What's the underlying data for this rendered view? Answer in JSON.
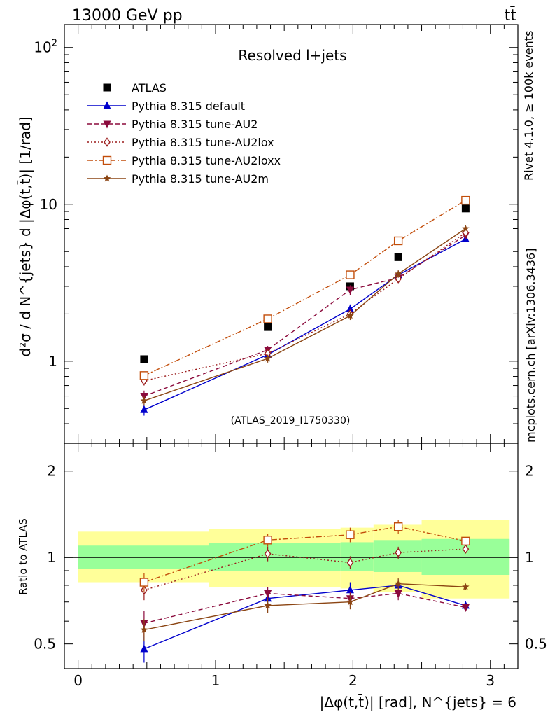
{
  "header": {
    "energy_label": "13000 GeV pp",
    "process_label": "tt̄"
  },
  "side_labels": {
    "rivet": "Rivet 4.1.0, ≥ 100k events",
    "mcplots": "mcplots.cern.ch [arXiv:1306.3436]"
  },
  "colors": {
    "atlas": "#000000",
    "default": "#0000cc",
    "au2": "#8b0a3c",
    "au2lox": "#9b1c1c",
    "au2loxx": "#c24d0a",
    "au2m": "#8b4513",
    "band_inner": "#99ff99",
    "band_outer": "#ffff99"
  },
  "chart_data": [
    {
      "type": "line",
      "panel": "main",
      "title": "Resolved l+jets",
      "watermark": "(ATLAS_2019_I1750330)",
      "ylabel": "d²σ / d N^{jets} d |Δφ(t,t̄)| [1/rad]",
      "yscale": "log",
      "ylim": [
        0.3,
        140
      ],
      "xlim": [
        -0.1,
        3.2
      ],
      "y_ticks": [
        {
          "value": 1,
          "label": "1"
        },
        {
          "value": 10,
          "label": "10"
        },
        {
          "value": 100,
          "label": "10²"
        }
      ],
      "legend_position": "top-left",
      "x": [
        0.48,
        1.38,
        1.98,
        2.33,
        2.82
      ],
      "series": [
        {
          "name": "ATLAS",
          "key": "atlas",
          "marker": "square-filled",
          "line": "none",
          "values": [
            1.03,
            1.65,
            3.0,
            4.6,
            9.4
          ],
          "errors": [
            0,
            0,
            0,
            0,
            0
          ]
        },
        {
          "name": "Pythia 8.315 default",
          "key": "default",
          "marker": "triangle-up-filled",
          "line": "solid",
          "values": [
            0.49,
            1.1,
            2.15,
            3.55,
            6.0
          ],
          "errors": [
            0.04,
            0.06,
            0.15,
            0.2,
            0.2
          ]
        },
        {
          "name": "Pythia 8.315 tune-AU2",
          "key": "au2",
          "marker": "triangle-down-filled",
          "line": "dashed",
          "values": [
            0.6,
            1.18,
            2.85,
            3.4,
            6.35
          ],
          "errors": [
            0.05,
            0.07,
            0.2,
            0.2,
            0.2
          ]
        },
        {
          "name": "Pythia 8.315 tune-AU2lox",
          "key": "au2lox",
          "marker": "diamond-open",
          "line": "dotted",
          "values": [
            0.75,
            1.12,
            2.0,
            3.35,
            6.6
          ],
          "errors": [
            0.05,
            0.06,
            0.12,
            0.2,
            0.2
          ]
        },
        {
          "name": "Pythia 8.315 tune-AU2loxx",
          "key": "au2loxx",
          "marker": "square-open",
          "line": "dashdot",
          "values": [
            0.81,
            1.86,
            3.55,
            5.85,
            10.6
          ],
          "errors": [
            0.05,
            0.08,
            0.2,
            0.25,
            0.3
          ]
        },
        {
          "name": "Pythia 8.315 tune-AU2m",
          "key": "au2m",
          "marker": "star",
          "line": "solid",
          "values": [
            0.56,
            1.04,
            1.95,
            3.6,
            7.0
          ],
          "errors": [
            0.04,
            0.06,
            0.12,
            0.2,
            0.2
          ]
        }
      ]
    },
    {
      "type": "line",
      "panel": "ratio",
      "ylabel": "Ratio to ATLAS",
      "xlabel": "|Δφ(t,t̄)| [rad], N^{jets} = 6",
      "yscale": "log",
      "ylim": [
        0.41,
        2.5
      ],
      "xlim": [
        -0.1,
        3.2
      ],
      "y_ticks": [
        {
          "value": 0.5,
          "label": "0.5"
        },
        {
          "value": 1,
          "label": "1"
        },
        {
          "value": 2,
          "label": "2"
        }
      ],
      "x_ticks": [
        {
          "value": 0,
          "label": "0"
        },
        {
          "value": 1,
          "label": "1"
        },
        {
          "value": 2,
          "label": "2"
        },
        {
          "value": 3,
          "label": "3"
        }
      ],
      "reference_line": 1,
      "bins": [
        {
          "lo": 0.0,
          "hi": 0.95,
          "inner": [
            0.91,
            1.1
          ],
          "outer": [
            0.82,
            1.23
          ]
        },
        {
          "lo": 0.95,
          "hi": 1.91,
          "inner": [
            0.9,
            1.12
          ],
          "outer": [
            0.79,
            1.26
          ]
        },
        {
          "lo": 1.91,
          "hi": 2.15,
          "inner": [
            0.9,
            1.13
          ],
          "outer": [
            0.78,
            1.27
          ]
        },
        {
          "lo": 2.15,
          "hi": 2.5,
          "inner": [
            0.89,
            1.15
          ],
          "outer": [
            0.76,
            1.3
          ]
        },
        {
          "lo": 2.5,
          "hi": 3.14,
          "inner": [
            0.87,
            1.16
          ],
          "outer": [
            0.72,
            1.35
          ]
        }
      ],
      "x": [
        0.48,
        1.38,
        1.98,
        2.33,
        2.82
      ],
      "series": [
        {
          "name": "Pythia 8.315 default",
          "key": "default",
          "values": [
            0.48,
            0.72,
            0.77,
            0.8,
            0.68
          ],
          "errors": [
            0.05,
            0.04,
            0.05,
            0.04,
            0.02
          ]
        },
        {
          "name": "Pythia 8.315 tune-AU2",
          "key": "au2",
          "values": [
            0.59,
            0.75,
            0.72,
            0.75,
            0.67
          ],
          "errors": [
            0.06,
            0.04,
            0.04,
            0.04,
            0.02
          ]
        },
        {
          "name": "Pythia 8.315 tune-AU2lox",
          "key": "au2lox",
          "values": [
            0.77,
            1.03,
            0.96,
            1.04,
            1.07
          ],
          "errors": [
            0.06,
            0.06,
            0.05,
            0.05,
            0.03
          ]
        },
        {
          "name": "Pythia 8.315 tune-AU2loxx",
          "key": "au2loxx",
          "values": [
            0.82,
            1.15,
            1.2,
            1.28,
            1.14
          ],
          "errors": [
            0.06,
            0.06,
            0.07,
            0.07,
            0.03
          ]
        },
        {
          "name": "Pythia 8.315 tune-AU2m",
          "key": "au2m",
          "values": [
            0.56,
            0.68,
            0.7,
            0.81,
            0.79
          ],
          "errors": [
            0.05,
            0.04,
            0.04,
            0.04,
            0.02
          ]
        }
      ]
    }
  ]
}
